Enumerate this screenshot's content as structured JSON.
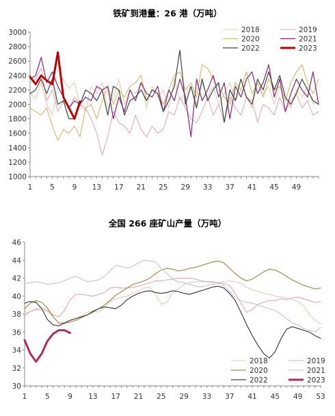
{
  "chart_data": [
    {
      "type": "line",
      "title": "铁矿到港量：26 港（万吨）",
      "xlabel": "",
      "ylabel": "",
      "ylim": [
        1000,
        3000
      ],
      "yticks": [
        1000,
        1200,
        1400,
        1600,
        1800,
        2000,
        2200,
        2400,
        2600,
        2800,
        3000
      ],
      "xlim": [
        1,
        53
      ],
      "xticks": [
        1,
        5,
        9,
        13,
        17,
        21,
        25,
        29,
        33,
        37,
        41,
        45,
        49
      ],
      "grid": false,
      "legend_position": "top-right",
      "series": [
        {
          "name": "2018",
          "color": "#e3cdb3",
          "width": 1.1,
          "values": [
            2150,
            2080,
            2300,
            2000,
            1850,
            2250,
            2350,
            2220,
            2300,
            2000,
            1900,
            2250,
            2150,
            2300,
            1950,
            2100,
            2350,
            2000,
            2200,
            2150,
            2300,
            1950,
            2250,
            2100,
            2200,
            1950,
            2350,
            2050,
            2150,
            2250,
            2000,
            2300,
            2100,
            2250,
            2000,
            2150,
            2300,
            2050,
            2200,
            2100,
            1950,
            2300,
            2150,
            2250,
            2000,
            2250,
            2100,
            1950,
            2200,
            2100,
            2250,
            2000,
            2100
          ]
        },
        {
          "name": "2019",
          "color": "#e3a9b5",
          "width": 1.1,
          "values": [
            2300,
            2350,
            2500,
            2050,
            2200,
            1900,
            2050,
            1950,
            2100,
            2000,
            1950,
            1800,
            1600,
            1300,
            1550,
            1900,
            1750,
            1700,
            1600,
            1850,
            1650,
            1550,
            1700,
            1600,
            1650,
            1900,
            1850,
            2100,
            1950,
            1800,
            1750,
            1900,
            2100,
            1850,
            2000,
            1750,
            2100,
            1950,
            1850,
            2100,
            2050,
            1750,
            2000,
            1950,
            1850,
            2100,
            1900,
            2050,
            2150,
            1950,
            2050,
            1850,
            1900
          ]
        },
        {
          "name": "2020",
          "color": "#d8b566",
          "width": 1.1,
          "values": [
            1950,
            1900,
            1850,
            1950,
            1700,
            1500,
            1650,
            1600,
            1700,
            1550,
            1950,
            2000,
            1800,
            2050,
            2250,
            2000,
            2200,
            2100,
            2250,
            2300,
            2400,
            2050,
            2200,
            2150,
            2000,
            2200,
            2400,
            2450,
            2200,
            2300,
            2100,
            2550,
            2500,
            2350,
            2250,
            2100,
            2000,
            2300,
            2200,
            2450,
            2150,
            2300,
            2100,
            2350,
            2200,
            2250,
            2050,
            2300,
            2450,
            2550,
            2300,
            2150,
            2350
          ]
        },
        {
          "name": "2021",
          "color": "#8b2377",
          "width": 1.2,
          "values": [
            2350,
            2400,
            2650,
            2300,
            2450,
            2250,
            2100,
            1950,
            2050,
            2000,
            2100,
            2050,
            2250,
            2200,
            2250,
            1800,
            2100,
            1900,
            2200,
            2050,
            2300,
            2150,
            2100,
            2250,
            1900,
            2200,
            2050,
            2350,
            2100,
            1550,
            2350,
            2050,
            2200,
            2400,
            2100,
            2300,
            1800,
            2250,
            2100,
            2350,
            2450,
            2150,
            2300,
            2550,
            2100,
            2350,
            1900,
            2150,
            2350,
            2200,
            2100,
            2450,
            2000
          ]
        },
        {
          "name": "2022",
          "color": "#3d4141",
          "width": 1.2,
          "values": [
            2150,
            2200,
            2350,
            2150,
            2350,
            2000,
            2050,
            1800,
            1800,
            2000,
            2200,
            2150,
            2050,
            2200,
            1850,
            2250,
            2200,
            1850,
            2050,
            2100,
            2200,
            2050,
            2200,
            2150,
            1900,
            2050,
            2250,
            2750,
            2000,
            2250,
            1950,
            2350,
            2050,
            2200,
            2300,
            1750,
            2200,
            2050,
            2350,
            2100,
            2000,
            2350,
            2200,
            2450,
            2200,
            2400,
            2100,
            2000,
            2150,
            2350,
            2200,
            2050,
            2000
          ]
        },
        {
          "name": "2023",
          "color": "#c00000",
          "width": 3,
          "values": [
            2380,
            2280,
            2400,
            2330,
            2280,
            2720,
            2100,
            1950,
            1800,
            2040
          ]
        }
      ]
    },
    {
      "type": "line",
      "title": "全国 266 座矿山产量（万吨）",
      "xlabel": "",
      "ylabel": "",
      "ylim": [
        30,
        46
      ],
      "yticks": [
        30,
        32,
        34,
        36,
        38,
        40,
        42,
        44,
        46
      ],
      "xlim": [
        1,
        53
      ],
      "xticks": [
        1,
        5,
        9,
        13,
        17,
        21,
        25,
        29,
        33,
        37,
        41,
        45,
        49,
        53
      ],
      "grid": false,
      "legend_position": "bottom-right",
      "series": [
        {
          "name": "2018",
          "color": "#e3cdb3",
          "width": 1.1,
          "values": [
            38.0,
            38.3,
            38.6,
            38.8,
            38.3,
            37.7,
            37.0,
            36.9,
            37.3,
            37.5,
            37.8,
            38.2,
            38.4,
            38.2,
            38.7,
            39.4,
            39.7,
            39.9,
            40.0,
            40.3,
            40.6,
            40.9,
            41.0,
            40.2,
            39.1,
            39.3,
            40.4,
            40.8,
            41.3,
            41.5,
            41.6,
            41.6,
            41.6,
            41.5,
            41.5,
            41.6,
            41.7,
            41.6,
            41.4,
            41.0,
            40.7,
            40.5,
            40.3,
            40.2,
            40.0,
            39.9,
            39.8,
            39.6,
            39.4,
            38.9,
            38.0,
            37.3,
            36.9
          ]
        },
        {
          "name": "2019",
          "color": "#e3a9b5",
          "width": 1.1,
          "values": [
            37.8,
            38.3,
            38.5,
            38.5,
            38.4,
            37.9,
            37.7,
            38.4,
            39.6,
            40.2,
            40.2,
            40.1,
            40.0,
            40.2,
            40.4,
            40.9,
            41.0,
            40.9,
            40.9,
            41.0,
            41.1,
            41.3,
            41.5,
            41.7,
            41.7,
            41.8,
            41.9,
            42.0,
            42.0,
            42.0,
            41.9,
            41.7,
            41.6,
            41.6,
            41.5,
            41.4,
            41.2,
            40.3,
            39.2,
            38.2,
            38.5,
            39.1,
            39.3,
            39.5,
            39.5,
            39.7,
            39.6,
            39.8,
            39.9,
            39.7,
            39.5,
            39.3,
            39.4
          ]
        },
        {
          "name": "2020",
          "color": "#a68b50",
          "width": 1.2,
          "values": [
            38.6,
            39.2,
            39.5,
            39.3,
            38.7,
            37.7,
            37.0,
            37.0,
            37.1,
            37.3,
            37.6,
            37.9,
            38.2,
            38.6,
            39.0,
            39.5,
            40.1,
            40.5,
            40.9,
            41.3,
            41.5,
            41.7,
            42.0,
            42.5,
            42.9,
            43.1,
            43.0,
            42.8,
            42.9,
            43.1,
            43.2,
            43.4,
            43.6,
            43.8,
            43.9,
            43.7,
            43.1,
            42.5,
            42.0,
            41.7,
            41.9,
            42.3,
            42.7,
            43.0,
            42.9,
            42.6,
            42.2,
            41.8,
            41.5,
            41.2,
            41.0,
            40.8,
            40.9
          ]
        },
        {
          "name": "2021",
          "color": "#bcc4e6",
          "width": 1.1,
          "values": [
            41.4,
            41.5,
            41.6,
            41.5,
            41.3,
            41.4,
            41.5,
            41.7,
            42.0,
            42.2,
            41.9,
            41.6,
            41.7,
            41.8,
            42.2,
            42.8,
            43.4,
            43.3,
            43.1,
            43.3,
            43.7,
            44.0,
            43.9,
            43.8,
            43.1,
            42.5,
            41.9,
            41.6,
            41.5,
            41.3,
            41.1,
            41.0,
            41.2,
            41.3,
            41.4,
            41.2,
            40.5,
            39.9,
            39.5,
            39.3,
            39.2,
            39.0,
            38.8,
            38.6,
            38.4,
            38.0,
            37.5,
            37.0,
            36.8,
            36.4,
            36.2,
            36.0,
            36.5
          ]
        },
        {
          "name": "2022",
          "color": "#3d4141",
          "width": 1.2,
          "values": [
            39.2,
            39.4,
            39.3,
            38.6,
            37.4,
            36.8,
            36.7,
            37.0,
            37.3,
            37.5,
            37.7,
            37.9,
            38.3,
            38.6,
            38.8,
            38.7,
            38.6,
            39.0,
            39.6,
            40.0,
            40.3,
            40.5,
            40.6,
            40.4,
            40.3,
            40.4,
            40.6,
            40.5,
            40.3,
            40.2,
            40.4,
            40.6,
            40.8,
            41.0,
            41.1,
            40.9,
            40.3,
            39.5,
            38.2,
            36.8,
            35.6,
            34.5,
            33.6,
            33.1,
            33.8,
            35.2,
            36.3,
            36.6,
            36.4,
            36.2,
            36.0,
            35.6,
            35.3
          ]
        },
        {
          "name": "2023",
          "color": "#b52a58",
          "width": 3,
          "values": [
            35.1,
            33.6,
            32.7,
            33.6,
            35.0,
            35.8,
            36.2,
            36.2,
            35.9
          ]
        }
      ]
    }
  ]
}
